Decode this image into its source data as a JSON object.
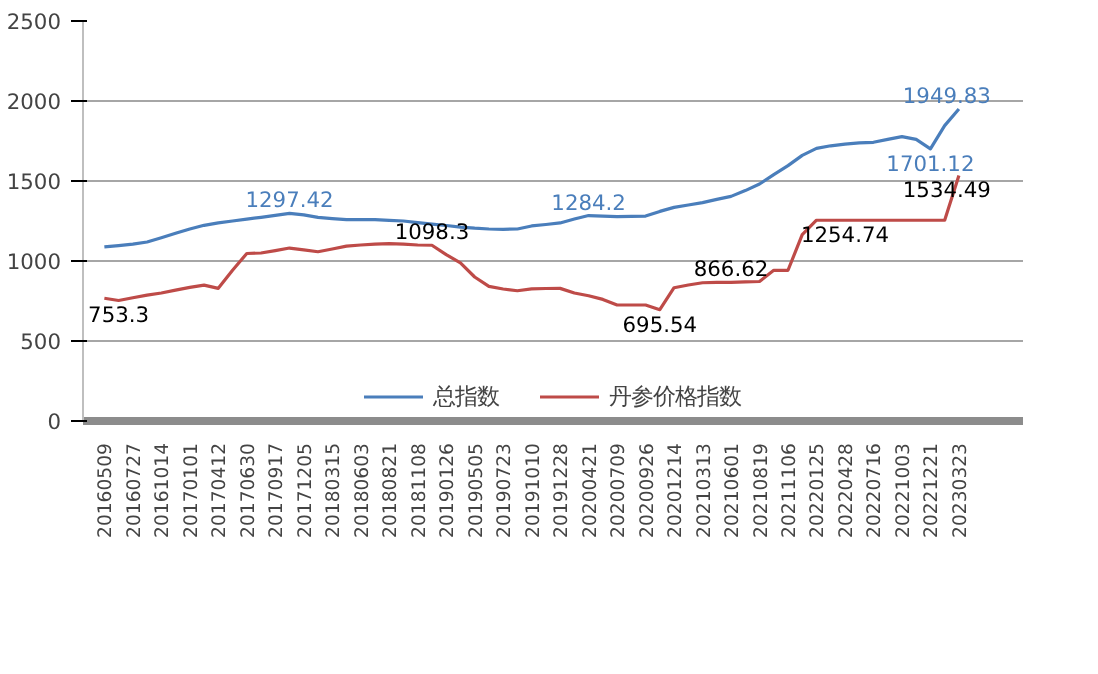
{
  "chart_data": {
    "type": "line",
    "categories": [
      "20160509",
      null,
      "20160727",
      null,
      "20161014",
      null,
      "20170101",
      null,
      "20170412",
      null,
      "20170630",
      null,
      "20170917",
      null,
      "20171205",
      null,
      "20180315",
      null,
      "20180603",
      null,
      "20180821",
      null,
      "20181108",
      null,
      "20190126",
      null,
      "20190505",
      null,
      "20190723",
      null,
      "20191010",
      null,
      "20191228",
      null,
      "20200421",
      null,
      "20200709",
      null,
      "20200926",
      null,
      "20201214",
      null,
      "20210313",
      null,
      "20210601",
      null,
      "20210819",
      null,
      "20211106",
      null,
      "20220125",
      null,
      "20220428",
      null,
      "20220716",
      null,
      "20221003",
      null,
      "20221221",
      null,
      "20230323"
    ],
    "series": [
      {
        "name": "总指数",
        "color": "#4a7ebb",
        "values": [
          1088,
          1096,
          1105,
          1119,
          1145,
          1173,
          1200,
          1223,
          1238,
          1250,
          1262,
          1273,
          1285,
          1297.42,
          1288,
          1273,
          1265,
          1258,
          1258,
          1258,
          1254,
          1250,
          1240,
          1231,
          1222,
          1212,
          1205,
          1200,
          1198,
          1200,
          1219,
          1228,
          1238,
          1262,
          1284.2,
          1280,
          1277,
          1279,
          1281,
          1310,
          1335,
          1350,
          1365,
          1385,
          1404,
          1440,
          1481,
          1540,
          1596,
          1660,
          1704,
          1720,
          1731,
          1738,
          1742,
          1760,
          1777,
          1760,
          1701.12,
          1846,
          1949.83
        ],
        "value_labels": [
          null,
          null,
          null,
          null,
          null,
          null,
          null,
          null,
          null,
          null,
          null,
          null,
          null,
          "1297.42",
          null,
          null,
          null,
          null,
          null,
          null,
          null,
          null,
          null,
          null,
          null,
          null,
          null,
          null,
          null,
          null,
          null,
          null,
          null,
          null,
          "1284.2",
          null,
          null,
          null,
          null,
          null,
          null,
          null,
          null,
          null,
          null,
          null,
          null,
          null,
          null,
          null,
          null,
          null,
          null,
          null,
          null,
          null,
          null,
          null,
          "1701.12",
          null,
          "1949.83"
        ]
      },
      {
        "name": "丹参价格指数",
        "color": "#be4b48",
        "values": [
          767,
          753.3,
          770,
          787,
          800,
          818,
          835,
          849,
          829,
          942,
          1047,
          1050,
          1065,
          1081,
          1070,
          1058,
          1075,
          1093,
          1100,
          1105,
          1108,
          1105,
          1100,
          1098.3,
          1040,
          988,
          900,
          841,
          825,
          814,
          826,
          828,
          829,
          800,
          783,
          760,
          725,
          725,
          725,
          695.54,
          833,
          850,
          864,
          866,
          866.62,
          870,
          872,
          942,
          942,
          1165,
          1254.74,
          1254.74,
          1254.74,
          1254.74,
          1254.74,
          1254.74,
          1254.74,
          1254.74,
          1254.74,
          1254.74,
          1534.49
        ],
        "value_labels": [
          null,
          "753.3",
          null,
          null,
          null,
          null,
          null,
          null,
          null,
          null,
          null,
          null,
          null,
          null,
          null,
          null,
          null,
          null,
          null,
          null,
          null,
          null,
          null,
          "1098.3",
          null,
          null,
          null,
          null,
          null,
          null,
          null,
          null,
          null,
          null,
          null,
          null,
          null,
          null,
          null,
          "695.54",
          null,
          null,
          null,
          null,
          "866.62",
          null,
          null,
          null,
          null,
          null,
          null,
          null,
          "1254.74",
          null,
          null,
          null,
          null,
          null,
          null,
          null,
          "1534.49"
        ]
      }
    ],
    "ylim": [
      0,
      2500
    ],
    "yticks": [
      0,
      500,
      1000,
      1500,
      2000,
      2500
    ],
    "grid": "y",
    "legend": "bottom",
    "marker": "none",
    "line_style": "solid"
  }
}
